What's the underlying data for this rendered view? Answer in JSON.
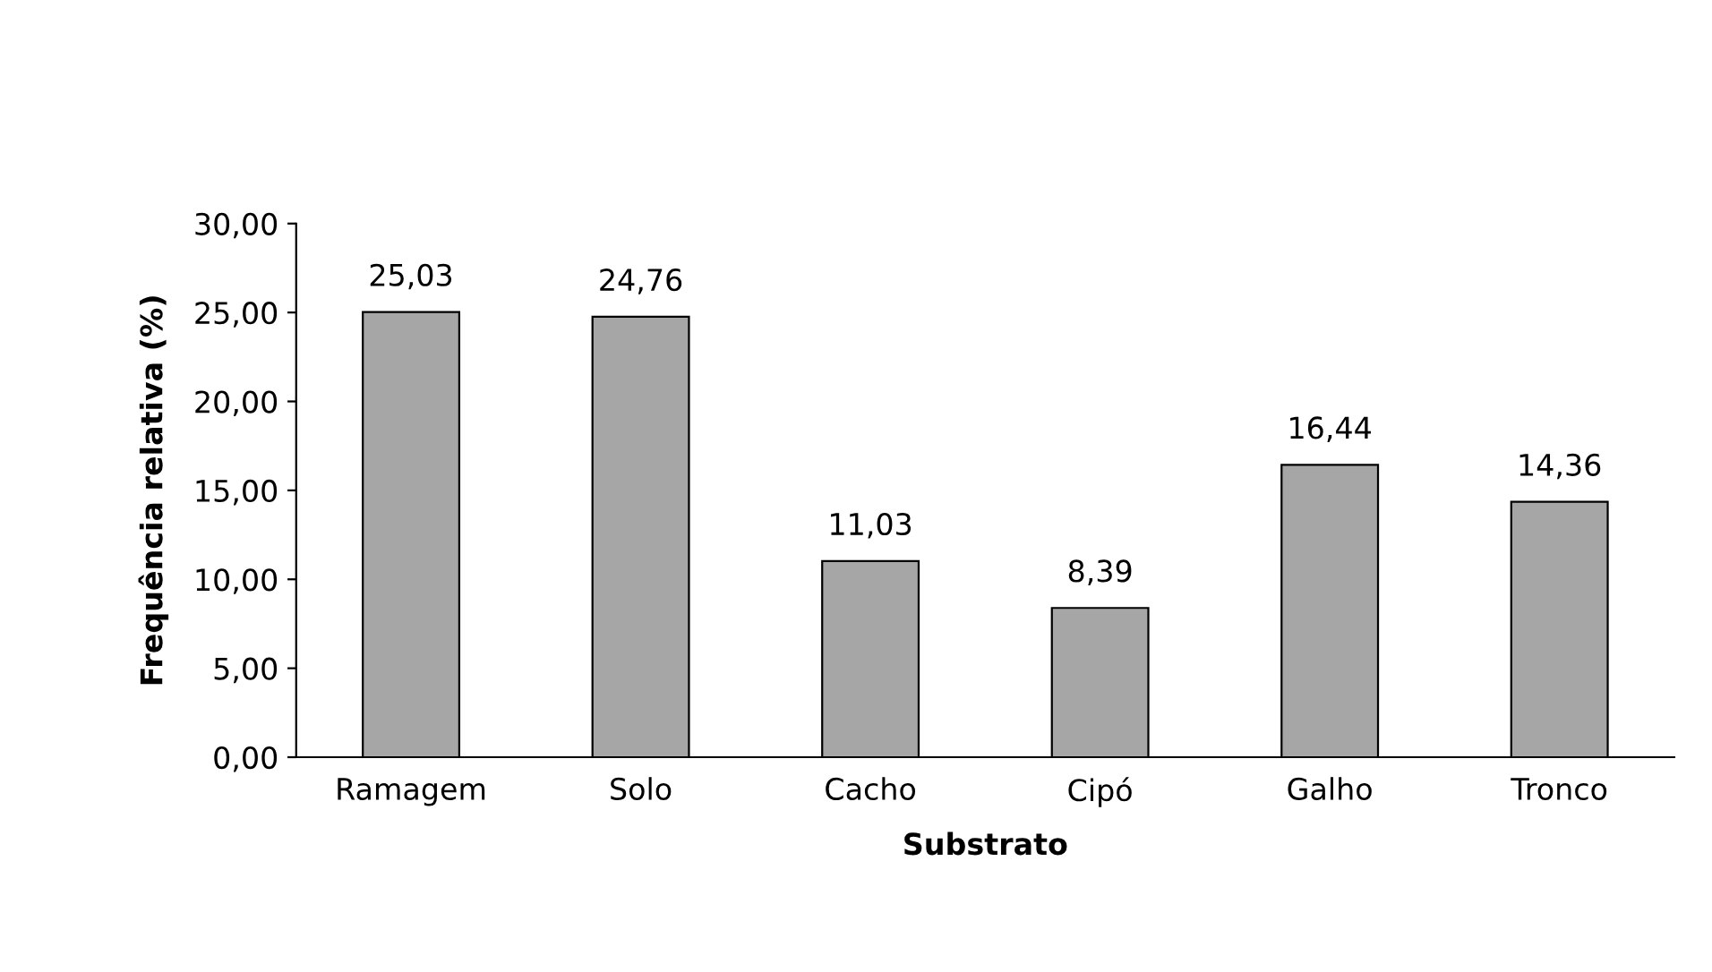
{
  "chart_data": {
    "type": "bar",
    "xlabel": "Substrato",
    "ylabel": "Frequência relativa (%)",
    "categories": [
      "Ramagem",
      "Solo",
      "Cacho",
      "Cipó",
      "Galho",
      "Tronco"
    ],
    "values": [
      25.03,
      24.76,
      11.03,
      8.39,
      16.44,
      14.36
    ],
    "value_labels": [
      "25,03",
      "24,76",
      "11,03",
      "8,39",
      "16,44",
      "14,36"
    ],
    "color": "#a6a6a6",
    "ylim": [
      0,
      30
    ],
    "yticks": [
      {
        "value": 0,
        "label": "0,00"
      },
      {
        "value": 5,
        "label": "5,00"
      },
      {
        "value": 10,
        "label": "10,00"
      },
      {
        "value": 15,
        "label": "15,00"
      },
      {
        "value": 20,
        "label": "20,00"
      },
      {
        "value": 25,
        "label": "25,00"
      },
      {
        "value": 30,
        "label": "30,00"
      }
    ],
    "grid": false,
    "legend": false
  }
}
